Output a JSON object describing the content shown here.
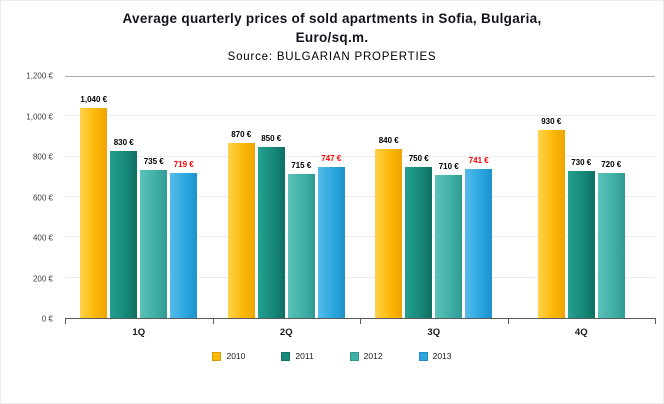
{
  "chart_data": {
    "type": "bar",
    "title": "Average quarterly prices of sold apartments in Sofia, Bulgaria, Euro/sq.m.",
    "title_lines": [
      "Average quarterly prices of sold apartments in Sofia, Bulgaria,",
      "Euro/sq.m."
    ],
    "subtitle": "Source: BULGARIAN PROPERTIES",
    "categories": [
      "1Q",
      "2Q",
      "3Q",
      "4Q"
    ],
    "series": [
      {
        "name": "2010",
        "color": "#FCB808",
        "gradient": [
          "#FFD34D",
          "#EFA400"
        ],
        "values": [
          1040,
          870,
          840,
          930
        ],
        "labels": [
          "1,040 €",
          "870 €",
          "840 €",
          "930 €"
        ],
        "label_color": "#000000"
      },
      {
        "name": "2011",
        "color": "#17897B",
        "gradient": [
          "#23A08F",
          "#0E6F63"
        ],
        "values": [
          830,
          850,
          750,
          730
        ],
        "labels": [
          "830 €",
          "850 €",
          "750 €",
          "730 €"
        ],
        "label_color": "#000000"
      },
      {
        "name": "2012",
        "color": "#41B0A7",
        "gradient": [
          "#5BC2B9",
          "#2F9C92"
        ],
        "values": [
          735,
          715,
          710,
          720
        ],
        "labels": [
          "735 €",
          "715 €",
          "710 €",
          "720 €"
        ],
        "label_color": "#000000"
      },
      {
        "name": "2013",
        "color": "#2BA7DF",
        "gradient": [
          "#55BCE9",
          "#1B93CC"
        ],
        "values": [
          719,
          747,
          741,
          null
        ],
        "labels": [
          "719 €",
          "747 €",
          "741 €",
          null
        ],
        "label_color": "#FF0000"
      }
    ],
    "ylim": [
      0,
      1200
    ],
    "ytick_step": 200,
    "yticks": [
      {
        "value": 0,
        "label": "0 €"
      },
      {
        "value": 200,
        "label": "200 €"
      },
      {
        "value": 400,
        "label": "400 €"
      },
      {
        "value": 600,
        "label": "600 €"
      },
      {
        "value": 800,
        "label": "800 €"
      },
      {
        "value": 1000,
        "label": "1,000 €"
      },
      {
        "value": 1200,
        "label": "1,200 €"
      }
    ],
    "grid": true,
    "legend_position": "bottom"
  }
}
